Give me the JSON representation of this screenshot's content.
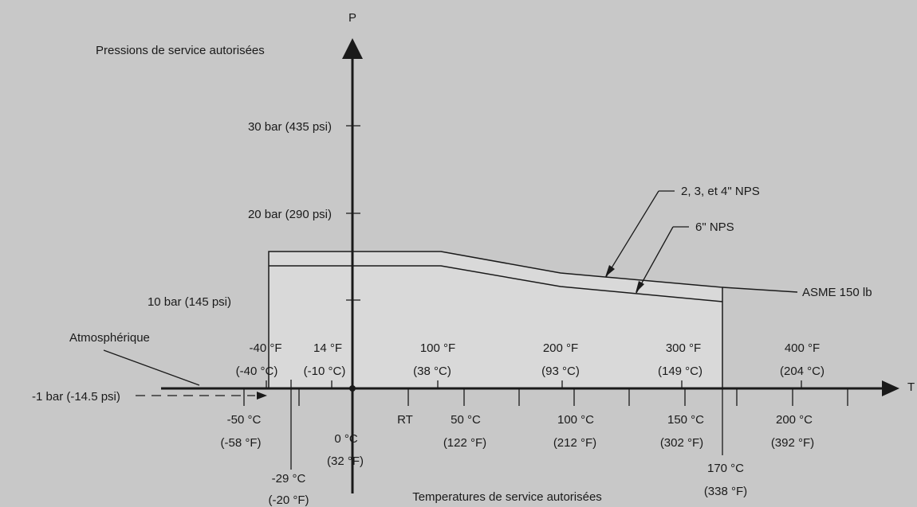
{
  "axes": {
    "p_label": "P",
    "t_label": "T",
    "y_title": "Pressions de service autorisées",
    "x_title": "Temperatures de service autorisées"
  },
  "pressure_ticks": {
    "p30": "30 bar (435 psi)",
    "p20": "20 bar (290 psi)",
    "p10": "10 bar (145 psi)"
  },
  "atmosphere": {
    "label": "Atmosphérique",
    "value": "-1 bar (-14.5 psi)"
  },
  "fahrenheit_labels": [
    {
      "f": "-40 °F",
      "c": "(-40 °C)"
    },
    {
      "f": "14 °F",
      "c": "(-10 °C)"
    },
    {
      "f": "100 °F",
      "c": "(38 °C)"
    },
    {
      "f": "200 °F",
      "c": "(93 °C)"
    },
    {
      "f": "300 °F",
      "c": "(149 °C)"
    },
    {
      "f": "400 °F",
      "c": "(204 °C)"
    }
  ],
  "celsius_labels": [
    {
      "c": "-50 °C",
      "f": "(-58 °F)"
    },
    {
      "c": "0 °C",
      "f": "(32 °F)"
    },
    {
      "c": "50 °C",
      "f": "(122 °F)"
    },
    {
      "c": "100 °C",
      "f": "(212 °F)"
    },
    {
      "c": "150 °C",
      "f": "(302 °F)"
    },
    {
      "c": "200 °C",
      "f": "(392 °F)"
    }
  ],
  "rt_label": "RT",
  "limits": {
    "low_c": "-29 °C",
    "low_f": "(-20 °F)",
    "high_c": "170 °C",
    "high_f": "(338 °F)"
  },
  "series": {
    "nps_small": "2, 3, et 4\" NPS",
    "nps_6": "6\" NPS",
    "asme": "ASME 150 lb"
  },
  "colors": {
    "background": "#c8c8c8",
    "region_fill": "#d9d9d9",
    "ink": "#1a1a1a"
  }
}
